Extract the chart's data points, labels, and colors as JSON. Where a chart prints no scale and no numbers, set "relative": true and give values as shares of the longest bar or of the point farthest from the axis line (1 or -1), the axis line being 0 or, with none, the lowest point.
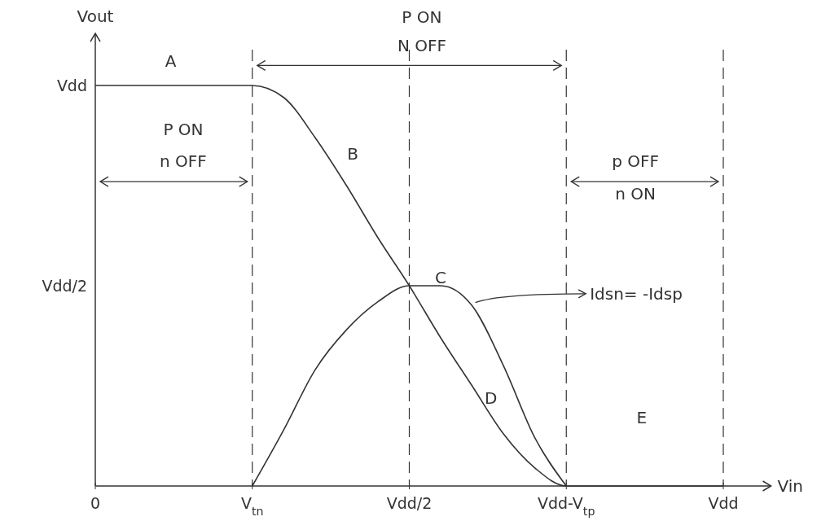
{
  "chart_data": {
    "type": "line",
    "xlabel": "Vin",
    "ylabel": "Vout",
    "relative": true,
    "categories": [
      "0",
      null,
      null,
      null,
      null,
      "V$_{tn}$",
      null,
      null,
      null,
      null,
      "Vdd/2",
      null,
      null,
      null,
      null,
      "Vdd-V$_{tp}$",
      null,
      null,
      null,
      null,
      "Vdd",
      null
    ],
    "grid": false,
    "legend": "right",
    "marker": "none",
    "line_style": "solid",
    "series": [
      {
        "color": "#333333",
        "values": [
          1,
          1,
          1,
          1,
          1,
          1,
          0.97,
          0.87,
          0.75,
          0.62,
          0.5,
          0.37,
          0.25,
          0.13,
          0.045,
          0,
          0,
          0,
          0,
          0,
          0,
          null
        ]
      },
      {
        "name": "Idsn= -Idsp",
        "color": "#333333",
        "values": [
          null,
          null,
          null,
          null,
          null,
          0,
          0.14,
          0.29,
          0.39,
          0.46,
          0.5,
          0.5,
          0.45,
          0.3,
          0.12,
          0,
          null,
          null,
          null,
          null,
          null,
          null
        ]
      }
    ],
    "ref_lines": [
      {
        "axis": "x",
        "value": "V$_{tn}$",
        "line_style": "dashed"
      },
      {
        "axis": "x",
        "value": "Vdd/2",
        "line_style": "dashed"
      },
      {
        "axis": "x",
        "value": "Vdd-V$_{tp}$",
        "line_style": "dashed"
      },
      {
        "axis": "x",
        "value": "Vdd",
        "line_style": "dashed"
      }
    ],
    "annotations": [
      "Vdd",
      "Vdd/2",
      "A",
      "B",
      "C",
      "D",
      "E",
      "P ON",
      "n OFF",
      "P ON",
      "N OFF",
      "p OFF",
      "n ON"
    ]
  }
}
